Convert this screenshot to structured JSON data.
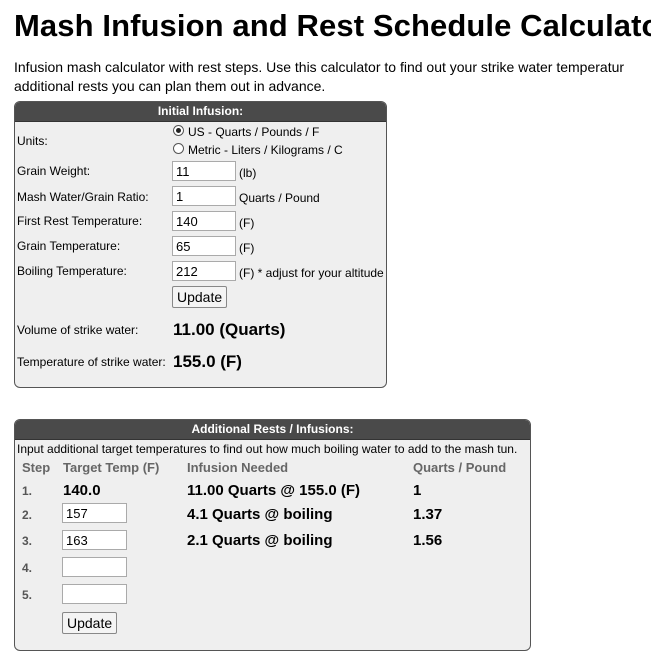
{
  "page": {
    "title": "Mash Infusion and Rest Schedule Calculator",
    "intro_line1": "Infusion mash calculator with rest steps. Use this calculator to find out your strike water temperatur",
    "intro_line2": "additional rests you can plan them out in advance."
  },
  "initial": {
    "header": "Initial Infusion:",
    "units_label": "Units:",
    "unit_options": [
      "US - Quarts / Pounds / F",
      "Metric - Liters / Kilograms / C"
    ],
    "selected_unit": "US - Quarts / Pounds / F",
    "fields": [
      {
        "label": "Grain Weight:",
        "value": "11",
        "unit": "(lb)"
      },
      {
        "label": "Mash Water/Grain Ratio:",
        "value": "1",
        "unit": "Quarts / Pound"
      },
      {
        "label": "First Rest Temperature:",
        "value": "140",
        "unit": "(F)"
      },
      {
        "label": "Grain Temperature:",
        "value": "65",
        "unit": "(F)"
      },
      {
        "label": "Boiling Temperature:",
        "value": "212",
        "unit": "(F) * adjust for your altitude"
      }
    ],
    "update_label": "Update",
    "volume_label": "Volume of strike water:",
    "volume_value": "11.00 (Quarts)",
    "temp_label": "Temperature of strike water:",
    "temp_value": "155.0 (F)"
  },
  "additional": {
    "header": "Additional Rests / Infusions:",
    "description": "Input additional target temperatures to find out how much boiling water to add to the mash tun.",
    "columns": [
      "Step",
      "Target Temp (F)",
      "Infusion Needed",
      "Quarts / Pound"
    ],
    "rows": [
      {
        "step": "1.",
        "target": "140.0",
        "infusion": "11.00 Quarts @ 155.0 (F)",
        "ratio": "1"
      },
      {
        "step": "2.",
        "target": "157",
        "infusion": "4.1 Quarts @ boiling",
        "ratio": "1.37"
      },
      {
        "step": "3.",
        "target": "163",
        "infusion": "2.1 Quarts @ boiling",
        "ratio": "1.56"
      },
      {
        "step": "4.",
        "target": "",
        "infusion": "",
        "ratio": ""
      },
      {
        "step": "5.",
        "target": "",
        "infusion": "",
        "ratio": ""
      }
    ],
    "update_label": "Update"
  }
}
